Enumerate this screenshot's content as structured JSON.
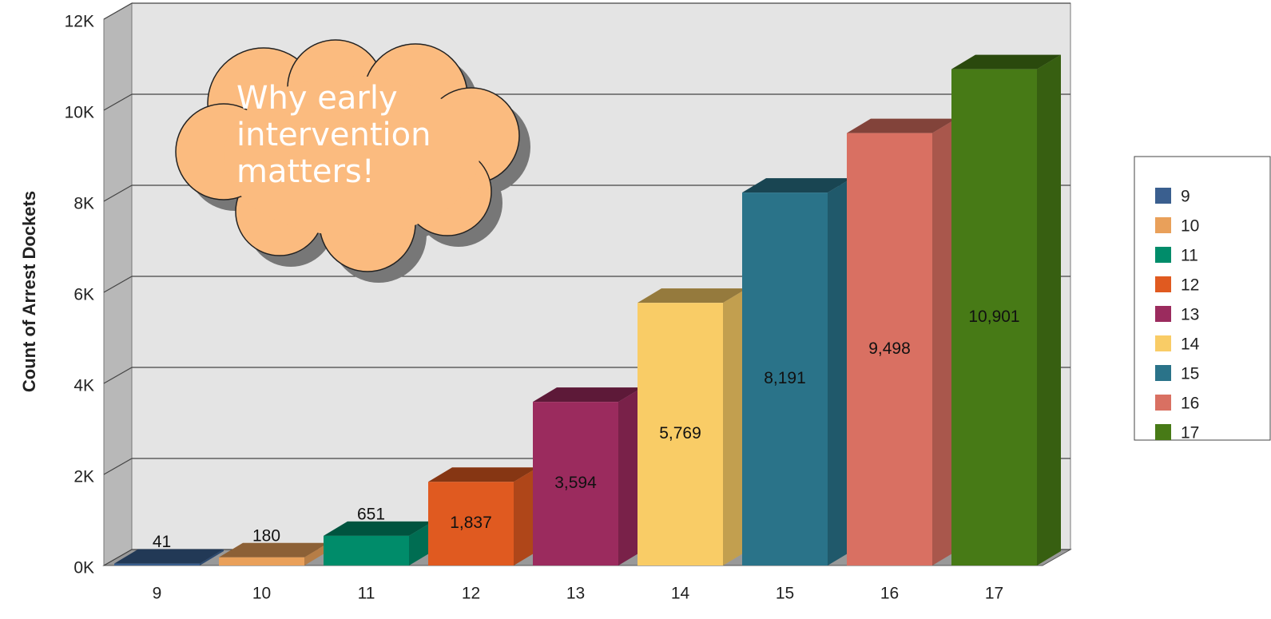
{
  "chart_data": {
    "type": "bar3d",
    "y_label": "Count of Arrest Dockets",
    "annotation": "Why early intervention matters!",
    "categories": [
      "9",
      "10",
      "11",
      "12",
      "13",
      "14",
      "15",
      "16",
      "17"
    ],
    "values": [
      41,
      180,
      651,
      1837,
      3594,
      5769,
      8191,
      9498,
      10901
    ],
    "value_labels": [
      "41",
      "180",
      "651",
      "1,837",
      "3,594",
      "5,769",
      "8,191",
      "9,498",
      "10,901"
    ],
    "colors": [
      "#3a5f8f",
      "#e9a05a",
      "#008c6a",
      "#e05a20",
      "#9b2b5e",
      "#f9cc66",
      "#2a7389",
      "#d97062",
      "#477a16"
    ],
    "ylim": [
      0,
      12000
    ],
    "yticks": [
      {
        "value": 0,
        "label": "0K"
      },
      {
        "value": 2000,
        "label": "2K"
      },
      {
        "value": 4000,
        "label": "4K"
      },
      {
        "value": 6000,
        "label": "6K"
      },
      {
        "value": 8000,
        "label": "8K"
      },
      {
        "value": 10000,
        "label": "10K"
      },
      {
        "value": 12000,
        "label": "12K"
      }
    ],
    "grid": true,
    "legend": "right"
  }
}
